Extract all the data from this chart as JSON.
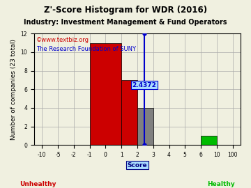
{
  "title": "Z'-Score Histogram for WDR (2016)",
  "industry_line": "Industry: Investment Management & Fund Operators",
  "watermark1": "©www.textbiz.org",
  "watermark2": "The Research Foundation of SUNY",
  "xlabel": "Score",
  "ylabel": "Number of companies (23 total)",
  "ylim": [
    0,
    12
  ],
  "yticks": [
    0,
    2,
    4,
    6,
    8,
    10,
    12
  ],
  "tick_labels": [
    "-10",
    "-5",
    "-2",
    "-1",
    "0",
    "1",
    "2",
    "3",
    "4",
    "5",
    "6",
    "10",
    "100"
  ],
  "xlim": [
    -0.5,
    12.5
  ],
  "bars": [
    {
      "x_pos_start": 3,
      "x_pos_end": 5,
      "height": 11,
      "color": "#cc0000"
    },
    {
      "x_pos_start": 5,
      "x_pos_end": 6,
      "height": 7,
      "color": "#cc0000"
    },
    {
      "x_pos_start": 6,
      "x_pos_end": 7,
      "height": 4,
      "color": "#808080"
    },
    {
      "x_pos_start": 10,
      "x_pos_end": 11,
      "height": 1,
      "color": "#00bb00"
    }
  ],
  "marker_cat_x": 6.4372,
  "marker_label": "2.4372",
  "marker_ymin": 0,
  "marker_ymax": 12,
  "marker_crossbar_y1": 6.8,
  "marker_crossbar_y2": 6.1,
  "marker_crossbar_halfwidth": 0.6,
  "marker_color": "#0000cc",
  "unhealthy_label": "Unhealthy",
  "healthy_label": "Healthy",
  "unhealthy_color": "#cc0000",
  "healthy_color": "#00bb00",
  "bg_color": "#f0f0e0",
  "grid_color": "#aaaaaa",
  "title_fontsize": 8.5,
  "industry_fontsize": 7,
  "watermark_fontsize": 6,
  "axis_fontsize": 6.5,
  "tick_fontsize": 5.5,
  "label_fontsize": 6.5,
  "annotation_fontsize": 6.5
}
